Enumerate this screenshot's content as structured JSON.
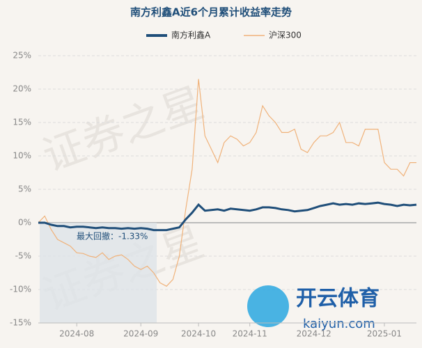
{
  "chart_data": {
    "type": "line",
    "title": "南方利鑫A近6个月累计收益率走势",
    "categories": [
      null,
      null,
      null,
      null,
      null,
      null,
      "2024-08",
      null,
      null,
      null,
      null,
      null,
      null,
      null,
      null,
      null,
      "2024-09",
      null,
      null,
      null,
      null,
      null,
      null,
      null,
      null,
      "2024-10",
      null,
      null,
      null,
      null,
      null,
      null,
      null,
      "2024-11",
      null,
      null,
      null,
      null,
      null,
      null,
      null,
      null,
      null,
      "2024-12",
      null,
      null,
      null,
      null,
      null,
      null,
      null,
      null,
      null,
      null,
      "2025-01",
      null,
      null,
      null,
      null,
      null
    ],
    "series": [
      {
        "name": "南方利鑫A",
        "color": "#1f4e79",
        "values": [
          0,
          0,
          -0.3,
          -0.5,
          -0.5,
          -0.7,
          -0.6,
          -0.6,
          -0.7,
          -0.8,
          -0.7,
          -0.8,
          -0.8,
          -0.9,
          -0.8,
          -0.9,
          -0.8,
          -0.9,
          -1.1,
          -1.1,
          -1.1,
          -0.9,
          -0.7,
          0.5,
          1.5,
          2.7,
          1.8,
          1.9,
          2.0,
          1.8,
          2.1,
          2.0,
          1.9,
          1.8,
          2.0,
          2.3,
          2.3,
          2.2,
          2.0,
          1.9,
          1.7,
          1.8,
          1.9,
          2.2,
          2.5,
          2.7,
          2.9,
          2.7,
          2.8,
          2.7,
          2.9,
          2.8,
          2.9,
          3.0,
          2.8,
          2.7,
          2.5,
          2.7,
          2.6,
          2.7
        ]
      },
      {
        "name": "沪深300",
        "color": "#f0b27a",
        "values": [
          0,
          1.0,
          -1,
          -2.5,
          -3,
          -3.5,
          -4.5,
          -4.6,
          -5,
          -5.2,
          -4.5,
          -5.5,
          -5,
          -4.8,
          -5.5,
          -6.5,
          -7,
          -6.5,
          -7.5,
          -9,
          -9.5,
          -8.5,
          -5,
          2,
          8,
          21.5,
          13,
          11,
          9,
          12,
          13,
          12.5,
          11.5,
          12,
          13.5,
          17.5,
          16,
          15,
          13.5,
          13.5,
          14,
          11,
          10.5,
          12,
          13,
          13,
          13.5,
          15,
          12,
          12,
          11.5,
          14,
          14,
          14,
          9,
          8,
          8,
          7,
          9,
          9
        ]
      }
    ],
    "ylim": [
      -15,
      25
    ],
    "yticks": [
      {
        "value": -15,
        "label": "-15%"
      },
      {
        "value": -10,
        "label": "-10%"
      },
      {
        "value": -5,
        "label": "-5%"
      },
      {
        "value": 0,
        "label": "0%"
      },
      {
        "value": 5,
        "label": "5%"
      },
      {
        "value": 10,
        "label": "10%"
      },
      {
        "value": 15,
        "label": "15%"
      },
      {
        "value": 20,
        "label": "20%"
      },
      {
        "value": 25,
        "label": "25%"
      }
    ],
    "grid": true,
    "annotation": "最大回撤：-1.33%",
    "watermark": "证券之星",
    "logo_text": "开云体育",
    "logo_url": "kaiyun.com"
  }
}
